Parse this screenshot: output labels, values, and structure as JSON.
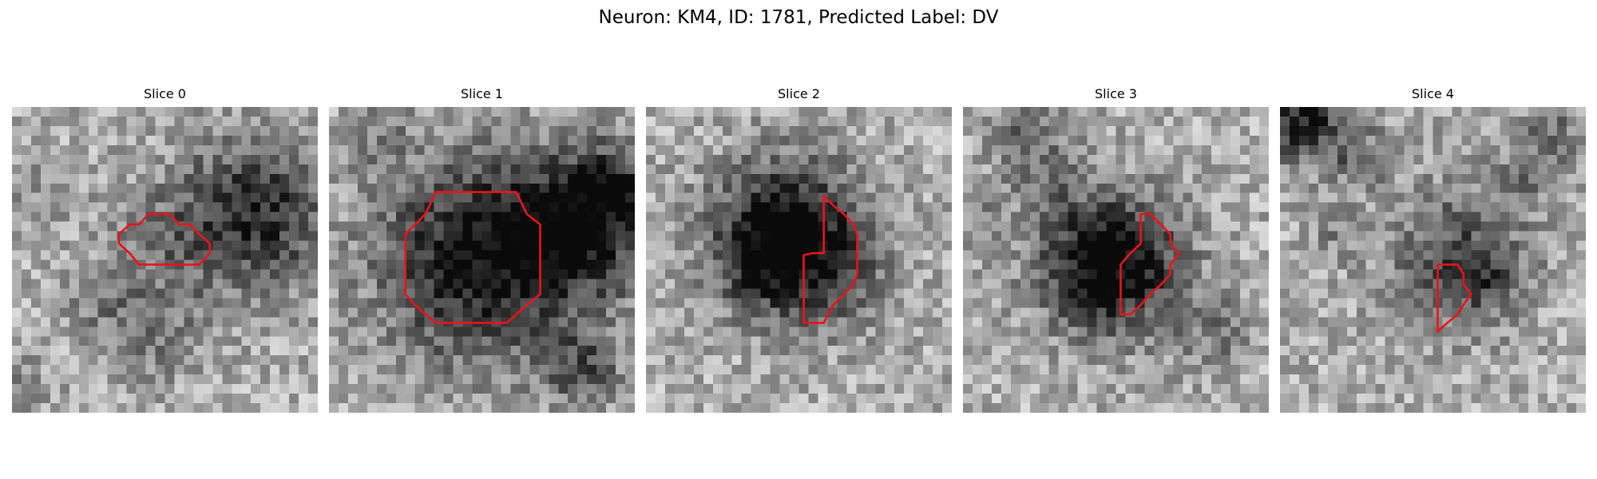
{
  "figure": {
    "title": "Neuron: KM4, ID: 1781, Predicted Label: DV"
  },
  "image": {
    "description_type": "grayscale microscopy slices with red ROI outline",
    "outline_color": "#e8141c",
    "grid_cells": 32
  },
  "panels": [
    {
      "title": "Slice 0",
      "roi": [
        [
          11.2,
          13.3
        ],
        [
          12.3,
          12.3
        ],
        [
          13.3,
          12.3
        ],
        [
          14.3,
          11.2
        ],
        [
          15.5,
          11.2
        ],
        [
          16.5,
          11.2
        ],
        [
          17.5,
          12.3
        ],
        [
          18.6,
          12.3
        ],
        [
          19.6,
          13.3
        ],
        [
          20.7,
          14.3
        ],
        [
          20.7,
          15.3
        ],
        [
          19.6,
          16.5
        ],
        [
          18.6,
          16.5
        ],
        [
          17.5,
          16.5
        ],
        [
          16.5,
          16.5
        ],
        [
          15.5,
          16.5
        ],
        [
          14.3,
          16.5
        ],
        [
          13.3,
          16.5
        ],
        [
          12.3,
          15.3
        ],
        [
          11.2,
          14.3
        ]
      ],
      "dark": [
        {
          "cx": 25.8,
          "cy": 11.2,
          "r": 5.6,
          "s": -135
        },
        {
          "cx": 16.5,
          "cy": 14.0,
          "r": 4.5,
          "s": -45
        },
        {
          "cx": 14.5,
          "cy": 23.5,
          "r": 3.6,
          "s": -55
        },
        {
          "cx": 9.0,
          "cy": 20.0,
          "r": 2.5,
          "s": -45
        },
        {
          "cx": 3.0,
          "cy": 9.0,
          "r": 3.0,
          "s": -25
        },
        {
          "cx": 1.0,
          "cy": 29.5,
          "r": 2.0,
          "s": -45
        }
      ]
    },
    {
      "title": "Slice 1",
      "roi": [
        [
          11.2,
          8.9
        ],
        [
          12.3,
          8.9
        ],
        [
          13.3,
          8.9
        ],
        [
          14.3,
          8.9
        ],
        [
          15.5,
          8.9
        ],
        [
          16.5,
          8.9
        ],
        [
          17.5,
          8.9
        ],
        [
          18.6,
          8.9
        ],
        [
          19.6,
          8.9
        ],
        [
          20.7,
          11.2
        ],
        [
          22.1,
          12.3
        ],
        [
          22.1,
          13.3
        ],
        [
          22.1,
          14.3
        ],
        [
          22.1,
          15.5
        ],
        [
          22.1,
          16.5
        ],
        [
          22.1,
          17.5
        ],
        [
          22.1,
          18.6
        ],
        [
          22.1,
          19.6
        ],
        [
          20.7,
          20.7
        ],
        [
          19.6,
          21.7
        ],
        [
          18.6,
          22.6
        ],
        [
          17.5,
          22.6
        ],
        [
          16.5,
          22.6
        ],
        [
          15.5,
          22.6
        ],
        [
          14.3,
          22.6
        ],
        [
          13.3,
          22.6
        ],
        [
          12.3,
          22.6
        ],
        [
          11.2,
          22.6
        ],
        [
          10.1,
          21.7
        ],
        [
          9.0,
          20.7
        ],
        [
          8.0,
          19.6
        ],
        [
          8.0,
          18.6
        ],
        [
          8.0,
          17.5
        ],
        [
          8.0,
          16.5
        ],
        [
          8.0,
          15.5
        ],
        [
          8.0,
          14.3
        ],
        [
          8.0,
          13.3
        ],
        [
          9.0,
          12.3
        ],
        [
          10.1,
          11.2
        ]
      ],
      "dark": [
        {
          "cx": 16.0,
          "cy": 15.8,
          "r": 7.5,
          "s": -170
        },
        {
          "cx": 26.5,
          "cy": 12.5,
          "r": 5.0,
          "s": -130
        },
        {
          "cx": 30.0,
          "cy": 8.0,
          "r": 3.0,
          "s": -90
        },
        {
          "cx": 26.5,
          "cy": 27.5,
          "r": 2.8,
          "s": -80
        },
        {
          "cx": 5.0,
          "cy": 2.5,
          "r": 2.5,
          "s": -40
        }
      ]
    },
    {
      "title": "Slice 2",
      "roi": [
        [
          18.6,
          9.3
        ],
        [
          19.6,
          10.3
        ],
        [
          20.7,
          11.2
        ],
        [
          21.7,
          12.3
        ],
        [
          22.1,
          13.3
        ],
        [
          22.1,
          14.3
        ],
        [
          22.1,
          15.5
        ],
        [
          22.1,
          16.5
        ],
        [
          22.1,
          17.5
        ],
        [
          21.7,
          18.6
        ],
        [
          20.7,
          19.6
        ],
        [
          19.6,
          20.7
        ],
        [
          18.6,
          22.6
        ],
        [
          17.5,
          22.6
        ],
        [
          16.5,
          22.6
        ],
        [
          16.5,
          21.7
        ],
        [
          16.5,
          20.7
        ],
        [
          16.5,
          19.6
        ],
        [
          16.5,
          18.6
        ],
        [
          16.5,
          17.5
        ],
        [
          16.5,
          16.5
        ],
        [
          16.5,
          15.5
        ],
        [
          17.5,
          15.3
        ],
        [
          18.6,
          15.3
        ],
        [
          18.6,
          14.3
        ],
        [
          18.6,
          13.3
        ],
        [
          18.6,
          12.3
        ],
        [
          18.6,
          11.2
        ],
        [
          18.6,
          10.3
        ]
      ],
      "dark": [
        {
          "cx": 14.0,
          "cy": 12.5,
          "r": 5.2,
          "s": -145
        },
        {
          "cx": 18.5,
          "cy": 16.5,
          "r": 5.0,
          "s": -85
        },
        {
          "cx": 12.0,
          "cy": 17.0,
          "r": 3.5,
          "s": -60
        }
      ]
    },
    {
      "title": "Slice 3",
      "roi": [
        [
          18.6,
          11.2
        ],
        [
          19.6,
          11.2
        ],
        [
          20.7,
          12.3
        ],
        [
          21.7,
          13.3
        ],
        [
          21.7,
          14.3
        ],
        [
          22.6,
          15.3
        ],
        [
          21.7,
          16.5
        ],
        [
          21.7,
          17.5
        ],
        [
          20.7,
          18.6
        ],
        [
          19.6,
          19.6
        ],
        [
          18.6,
          20.7
        ],
        [
          17.5,
          21.7
        ],
        [
          16.5,
          21.7
        ],
        [
          16.5,
          20.7
        ],
        [
          16.5,
          19.6
        ],
        [
          16.5,
          18.6
        ],
        [
          16.5,
          17.5
        ],
        [
          16.5,
          16.5
        ],
        [
          17.5,
          15.3
        ],
        [
          18.6,
          14.3
        ],
        [
          18.6,
          13.3
        ],
        [
          18.6,
          12.3
        ]
      ],
      "dark": [
        {
          "cx": 14.3,
          "cy": 16.0,
          "r": 5.0,
          "s": -150
        },
        {
          "cx": 18.0,
          "cy": 17.0,
          "r": 4.5,
          "s": -60
        },
        {
          "cx": 8.0,
          "cy": 5.5,
          "r": 3.2,
          "s": -55
        },
        {
          "cx": 5.5,
          "cy": 1.5,
          "r": 2.5,
          "s": -40
        },
        {
          "cx": 26.5,
          "cy": 23.5,
          "r": 3.0,
          "s": -50
        },
        {
          "cx": 1.5,
          "cy": 11.0,
          "r": 2.0,
          "s": -45
        }
      ]
    },
    {
      "title": "Slice 4",
      "roi": [
        [
          16.5,
          16.5
        ],
        [
          17.5,
          16.5
        ],
        [
          18.6,
          16.5
        ],
        [
          19.2,
          17.5
        ],
        [
          19.2,
          18.6
        ],
        [
          20.0,
          19.6
        ],
        [
          19.2,
          20.7
        ],
        [
          18.6,
          21.7
        ],
        [
          17.5,
          22.6
        ],
        [
          16.5,
          23.5
        ],
        [
          16.5,
          22.6
        ],
        [
          16.5,
          21.7
        ],
        [
          16.5,
          20.7
        ],
        [
          16.5,
          19.6
        ],
        [
          16.5,
          18.6
        ],
        [
          16.5,
          17.5
        ]
      ],
      "dark": [
        {
          "cx": 18.5,
          "cy": 15.0,
          "r": 5.5,
          "s": -75
        },
        {
          "cx": 20.5,
          "cy": 18.0,
          "r": 3.0,
          "s": -70
        },
        {
          "cx": 2.0,
          "cy": 1.5,
          "r": 3.0,
          "s": -150
        },
        {
          "cx": 8.0,
          "cy": 5.0,
          "r": 2.5,
          "s": -60
        },
        {
          "cx": 5.5,
          "cy": 13.0,
          "r": 2.0,
          "s": -40
        },
        {
          "cx": 28.5,
          "cy": 3.0,
          "r": 2.5,
          "s": -70
        },
        {
          "cx": 25.0,
          "cy": 7.5,
          "r": 2.0,
          "s": -45
        }
      ]
    }
  ]
}
